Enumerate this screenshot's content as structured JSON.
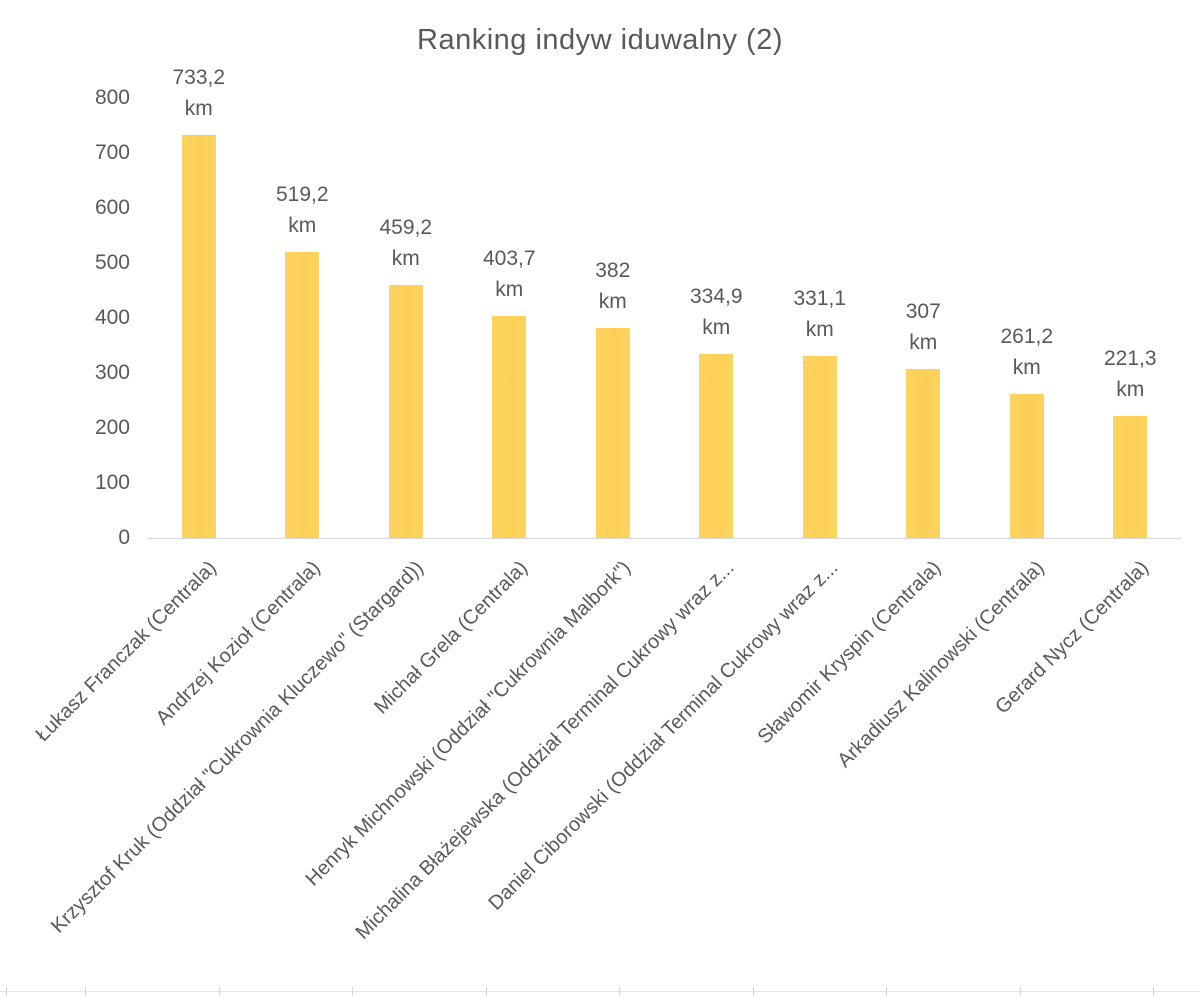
{
  "chart_data": {
    "type": "bar",
    "title": "Ranking indyw iduwalny (2)",
    "unit": "km",
    "categories": [
      "Łukasz Franczak (Centrala)",
      "Andrzej Kozioł (Centrala)",
      "Krzysztof Kruk (Oddział \"Cukrownia Kluczewo\" (Stargard))",
      "Michał Grela (Centrala)",
      "Henryk Michnowski (Oddział \"Cukrownia Malbork\")",
      "Michalina Błażejewska (Oddział Terminal Cukrowy wraz z...",
      "Daniel Ciborowski (Oddział Terminal Cukrowy wraz z...",
      "Sławomir Kryspin (Centrala)",
      "Arkadiusz Kalinowski (Centrala)",
      "Gerard Nycz (Centrala)"
    ],
    "values": [
      733.2,
      519.2,
      459.2,
      403.7,
      382,
      334.9,
      331.1,
      307,
      261.2,
      221.3
    ],
    "value_labels": [
      "733,2",
      "519,2",
      "459,2",
      "403,7",
      "382",
      "334,9",
      "331,1",
      "307",
      "261,2",
      "221,3"
    ],
    "yticks": [
      0,
      100,
      200,
      300,
      400,
      500,
      600,
      700,
      800
    ],
    "ylim": [
      0,
      800
    ],
    "xlabel": "",
    "ylabel": "",
    "grid": false,
    "legend": false,
    "bar_color": "#fbd15c",
    "text_color": "#595959",
    "axis_color": "#d9d9d9"
  }
}
